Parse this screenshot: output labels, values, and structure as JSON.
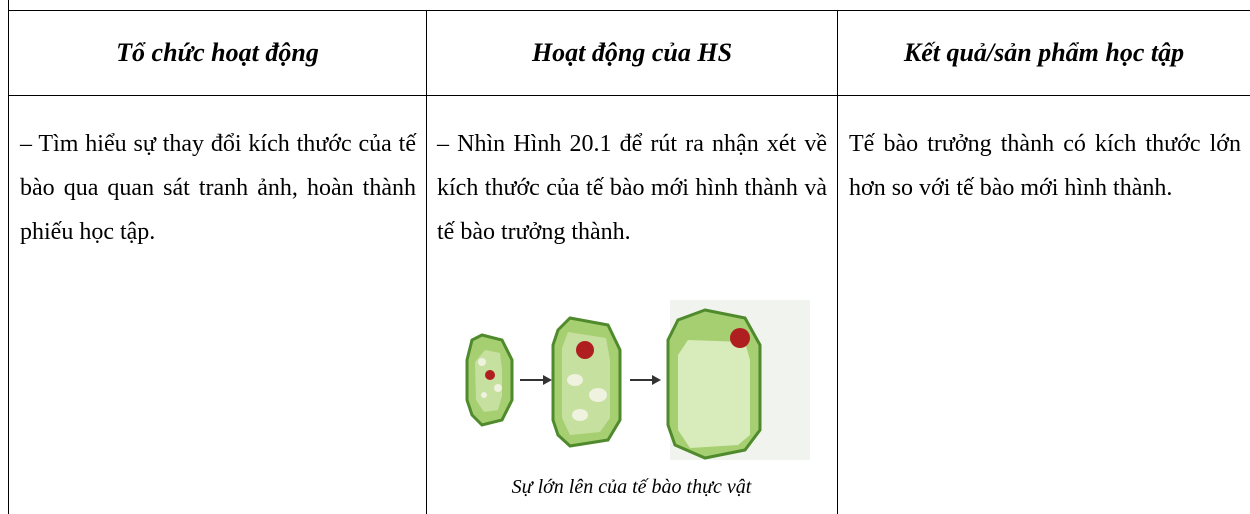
{
  "table": {
    "header": [
      "Tổ chức hoạt động",
      "Hoạt động của HS",
      "Kết quả/sản phẩm học tập"
    ],
    "rows": [
      [
        "– Tìm hiểu sự thay đổi kích thước của tế bào qua quan sát tranh ảnh,  hoàn thành phiếu học tập.",
        "– Nhìn Hình 20.1 để rút ra nhận xét về kích thước của tế bào mới hình thành và tế bào trưởng thành.",
        "Tế bào trưởng thành có kích thước lớn hơn so với tế bào mới hình thành."
      ]
    ]
  },
  "figure": {
    "caption": "Sự lớn lên của tế bào thực vật"
  }
}
